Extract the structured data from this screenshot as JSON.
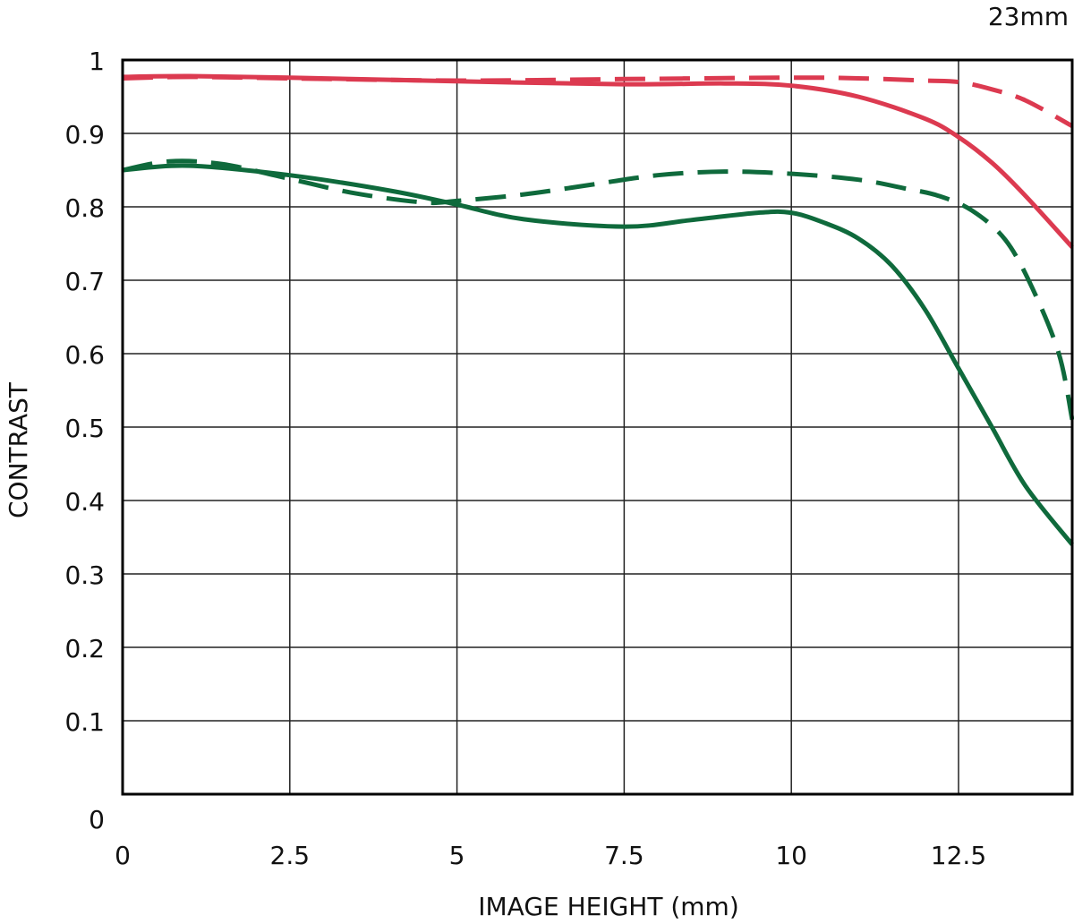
{
  "chart_data": {
    "type": "line",
    "focal_length_label": "23mm",
    "xlabel": "IMAGE HEIGHT (mm)",
    "ylabel": "CONTRAST",
    "xlim": [
      0,
      14.2
    ],
    "ylim": [
      0,
      1
    ],
    "x_ticks": [
      0,
      2.5,
      5,
      7.5,
      10,
      12.5
    ],
    "x_tick_labels": [
      "0",
      "2.5",
      "5",
      "7.5",
      "10",
      "12.5"
    ],
    "y_ticks": [
      0,
      0.1,
      0.2,
      0.3,
      0.4,
      0.5,
      0.6,
      0.7,
      0.8,
      0.9,
      1
    ],
    "y_tick_labels": [
      "0",
      "0.1",
      "0.2",
      "0.3",
      "0.4",
      "0.5",
      "0.6",
      "0.7",
      "0.8",
      "0.9",
      "1"
    ],
    "grid": true,
    "colors": {
      "red": "#dc3a50",
      "green": "#0f6a3c",
      "grid": "#222222",
      "frame": "#000000"
    },
    "series": [
      {
        "color": "#dc3a50",
        "style": "solid",
        "x": [
          0,
          1,
          2.5,
          5,
          7.5,
          9,
          10,
          11,
          12,
          12.5,
          13,
          13.5,
          14.2
        ],
        "y": [
          0.977,
          0.978,
          0.976,
          0.971,
          0.967,
          0.968,
          0.965,
          0.95,
          0.92,
          0.895,
          0.86,
          0.815,
          0.745
        ]
      },
      {
        "color": "#dc3a50",
        "style": "dashed",
        "x": [
          0,
          1,
          2.5,
          5,
          7.5,
          10,
          11,
          12,
          12.5,
          13,
          13.5,
          14.2
        ],
        "y": [
          0.975,
          0.977,
          0.975,
          0.972,
          0.974,
          0.976,
          0.975,
          0.972,
          0.97,
          0.96,
          0.945,
          0.91
        ]
      },
      {
        "color": "#0f6a3c",
        "style": "solid",
        "x": [
          0,
          1,
          2.5,
          4,
          5,
          6,
          7.5,
          8.5,
          9.5,
          10,
          10.5,
          11,
          11.5,
          12,
          12.5,
          13,
          13.5,
          14.2
        ],
        "y": [
          0.85,
          0.856,
          0.843,
          0.822,
          0.803,
          0.783,
          0.773,
          0.782,
          0.792,
          0.792,
          0.778,
          0.757,
          0.72,
          0.66,
          0.58,
          0.5,
          0.42,
          0.34
        ]
      },
      {
        "color": "#0f6a3c",
        "style": "dashed",
        "x": [
          0,
          0.7,
          1.5,
          2.5,
          3.5,
          4.5,
          5,
          6,
          7,
          8,
          9,
          10,
          11,
          11.7,
          12.2,
          12.7,
          13.2,
          13.6,
          14,
          14.2
        ],
        "y": [
          0.85,
          0.862,
          0.858,
          0.838,
          0.818,
          0.806,
          0.808,
          0.817,
          0.83,
          0.843,
          0.848,
          0.845,
          0.837,
          0.825,
          0.815,
          0.795,
          0.755,
          0.69,
          0.6,
          0.51
        ]
      }
    ]
  }
}
